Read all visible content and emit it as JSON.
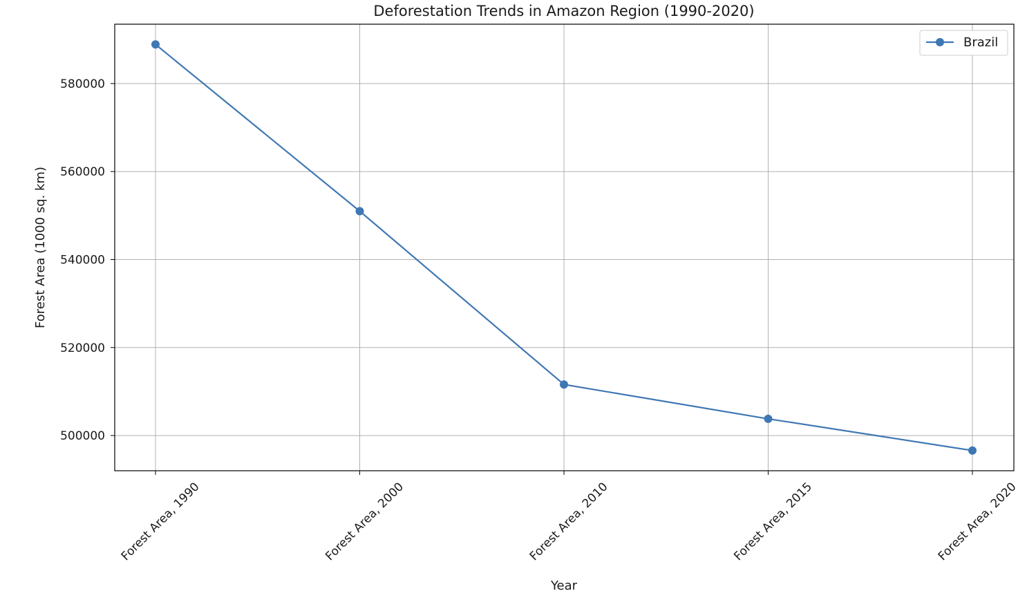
{
  "chart_data": {
    "type": "line",
    "title": "Deforestation Trends in Amazon Region (1990-2020)",
    "xlabel": "Year",
    "ylabel": "Forest Area (1000 sq. km)",
    "categories": [
      "Forest Area, 1990",
      "Forest Area, 2000",
      "Forest Area, 2010",
      "Forest Area, 2015",
      "Forest Area, 2020"
    ],
    "series": [
      {
        "name": "Brazil",
        "values": [
          588900,
          551000,
          511600,
          503800,
          496600
        ],
        "color": "#3f77b4"
      }
    ],
    "yticks": [
      500000,
      520000,
      540000,
      560000,
      580000
    ],
    "ylim": [
      492000,
      593500
    ],
    "grid": true,
    "legend_position": "top-right",
    "x_tick_rotation": 45
  }
}
